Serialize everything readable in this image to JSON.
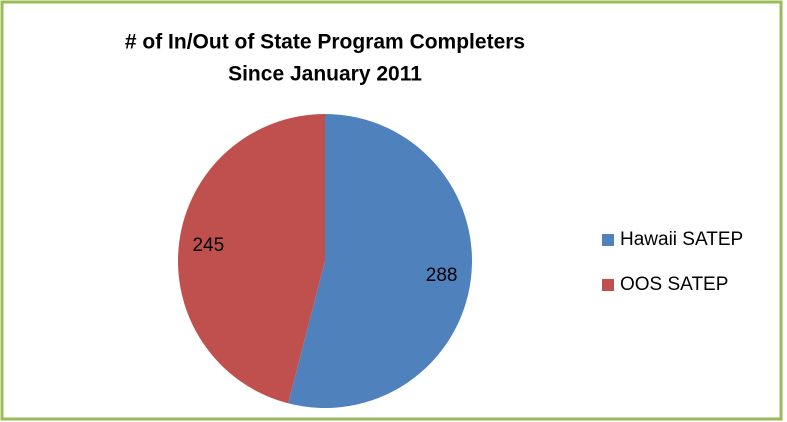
{
  "chart_data": {
    "type": "pie",
    "title": "# of In/Out of State Program Completers",
    "subtitle": "Since January 2011",
    "categories": [
      "Hawaii SATEP",
      "OOS SATEP"
    ],
    "values": [
      288,
      245
    ],
    "colors": [
      "#4f81bd",
      "#c0504d"
    ],
    "legend": "right"
  }
}
